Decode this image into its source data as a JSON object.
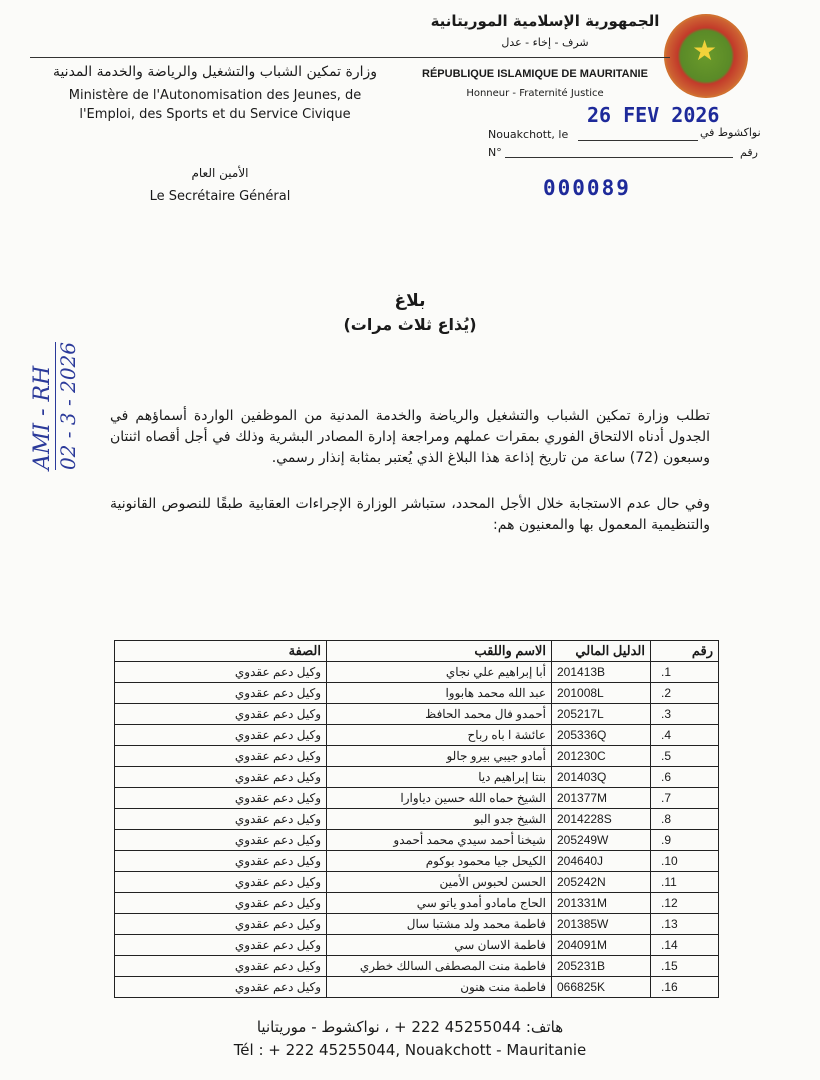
{
  "header": {
    "republic_ar": "الجمهورية الإسلامية الموريتانية",
    "motto_ar": "شرف - إخاء - عدل",
    "republic_fr": "RÉPUBLIQUE ISLAMIQUE DE MAURITANIE",
    "motto_fr": "Honneur - Fraternité  Justice",
    "ministry_ar": "وزارة تمكين الشباب والتشغيل والرياضة والخدمة المدنية",
    "ministry_fr_1": "Ministère de l'Autonomisation des Jeunes, de",
    "ministry_fr_2": "l'Emploi, des Sports et du Service Civique",
    "secretary_ar": "الأمين العام",
    "secretary_fr": "Le Secrétaire Général",
    "date_stamp": "26 FEV 2026",
    "place_fr": "Nouakchott, le",
    "place_ar": "نواكشوط في",
    "number_fr": "N°",
    "number_ar": "رقم",
    "number_stamp": "000089",
    "seal_color": "#c23a2a"
  },
  "title": "بلاغ",
  "subtitle": "(يُذاع ثلاث مرات)",
  "paragraphs": [
    "تطلب وزارة تمكين الشباب والتشغيل والرياضة والخدمة المدنية من الموظفين الواردة أسماؤهم في الجدول أدناه الالتحاق الفوري بمقرات عملهم ومراجعة إدارة المصادر البشرية وذلك في أجل أقصاه اثنتان وسبعون (72) ساعة من تاريخ إذاعة هذا البلاغ الذي يُعتبر بمثابة إنذار رسمي.",
    "وفي حال عدم الاستجابة خلال الأجل المحدد، ستباشر الوزارة الإجراءات العقابية طبقًا للنصوص القانونية والتنظيمية المعمول بها والمعنيون هم:"
  ],
  "handwritten": {
    "line1": "AMI - RH",
    "line2": "02 - 3 - 2026"
  },
  "table": {
    "headers": [
      "رقم",
      "الدليل المالي",
      "الاسم واللقب",
      "الصفة"
    ],
    "rows": [
      [
        "1.",
        "201413B",
        "أبا إبراهيم علي نجاي",
        "وكيل دعم عقدوي"
      ],
      [
        "2.",
        "201008L",
        "عبد الله محمد هابووا",
        "وكيل دعم عقدوي"
      ],
      [
        "3.",
        "205217L",
        "أحمدو فال محمد الحافظ",
        "وكيل دعم عقدوي"
      ],
      [
        "4.",
        "205336Q",
        "عائشة ا باه رباح",
        "وكيل دعم عقدوي"
      ],
      [
        "5.",
        "201230C",
        "أمادو جيبي بيرو جالو",
        "وكيل دعم عقدوي"
      ],
      [
        "6.",
        "201403Q",
        "بنتا إبراهيم ديا",
        "وكيل دعم عقدوي"
      ],
      [
        "7.",
        "201377M",
        "الشيخ حماه الله حسين دياوارا",
        "وكيل دعم عقدوي"
      ],
      [
        "8.",
        "2014228S",
        "الشيخ جدو البو",
        "وكيل دعم عقدوي"
      ],
      [
        "9.",
        "205249W",
        "شيخنا أحمد سيدي محمد أحمدو",
        "وكيل دعم عقدوي"
      ],
      [
        "10.",
        "204640J",
        "الكيحل جيا محمود بوكوم",
        "وكيل دعم عقدوي"
      ],
      [
        "11.",
        "205242N",
        "الحسن لحبوس الأمين",
        "وكيل دعم عقدوي"
      ],
      [
        "12.",
        "201331M",
        "الحاج مامادو أمدو ياتو سي",
        "وكيل دعم عقدوي"
      ],
      [
        "13.",
        "201385W",
        "فاطمة محمد ولد مشتبا سال",
        "وكيل دعم عقدوي"
      ],
      [
        "14.",
        "204091M",
        "فاطمة الاسان سي",
        "وكيل دعم عقدوي"
      ],
      [
        "15.",
        "205231B",
        "فاطمة منت المصطفى السالك خطري",
        "وكيل دعم عقدوي"
      ],
      [
        "16.",
        "066825K",
        "فاطمة منت هنون",
        "وكيل دعم عقدوي"
      ]
    ]
  },
  "footer": {
    "ar": "هاتف: 45255044 222 + ، نواكشوط - موريتانيا",
    "fr": "Tél : + 222 45255044, Nouakchott - Mauritanie"
  }
}
